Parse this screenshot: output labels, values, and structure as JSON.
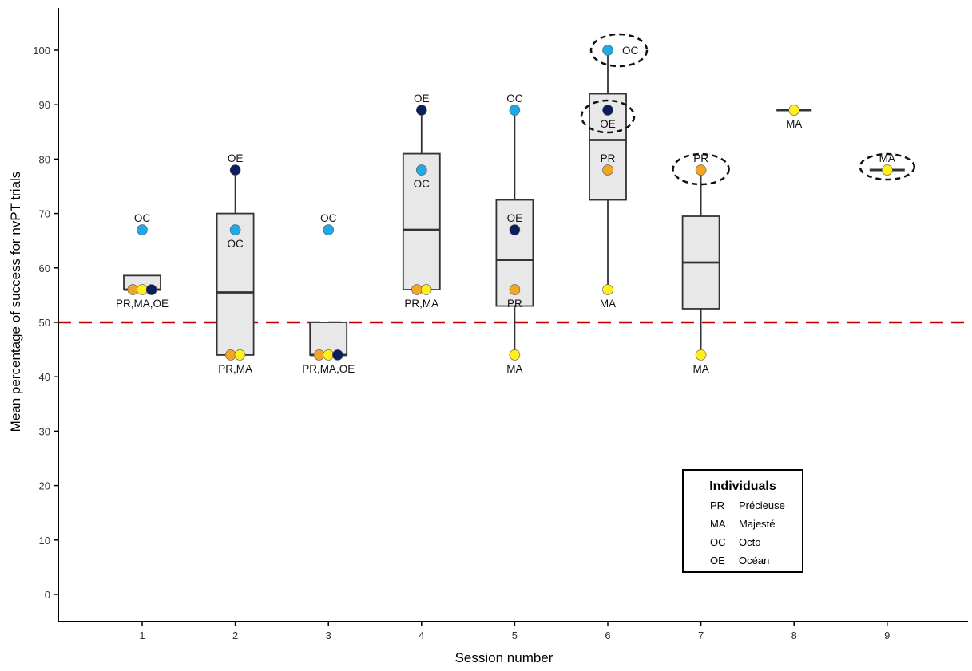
{
  "chart_data": {
    "type": "box-dot",
    "xlabel": "Session number",
    "ylabel": "Mean percentage of success for nvPT trials",
    "categories": [
      "1",
      "2",
      "3",
      "4",
      "5",
      "6",
      "7",
      "8",
      "9"
    ],
    "ylim": [
      -5,
      107
    ],
    "yticks": [
      0,
      10,
      20,
      30,
      40,
      50,
      60,
      70,
      80,
      90,
      100
    ],
    "reference_line": {
      "y": 50,
      "color": "#c00000"
    },
    "colors": {
      "PR": "#f2a623",
      "MA": "#ffef1a",
      "OC": "#20a9e6",
      "OE": "#0b1f5e",
      "box_fill": "#e8e8e8",
      "box_stroke": "#333333"
    },
    "boxes": [
      {
        "session": 1,
        "low": 56,
        "q1": 56,
        "median": 56,
        "q3": 58.6,
        "high": 58.6
      },
      {
        "session": 2,
        "low": 44,
        "q1": 44,
        "median": 55.5,
        "q3": 70,
        "high": 78
      },
      {
        "session": 3,
        "low": 44,
        "q1": 44,
        "median": 44,
        "q3": 50,
        "high": 50
      },
      {
        "session": 4,
        "low": 56,
        "q1": 56,
        "median": 67,
        "q3": 81,
        "high": 89
      },
      {
        "session": 5,
        "low": 44,
        "q1": 53,
        "median": 61.5,
        "q3": 72.5,
        "high": 89
      },
      {
        "session": 6,
        "low": 56,
        "q1": 72.5,
        "median": 83.5,
        "q3": 92,
        "high": 100
      },
      {
        "session": 7,
        "low": 44,
        "q1": 52.5,
        "median": 61,
        "q3": 69.5,
        "high": 78
      },
      {
        "session": 8,
        "median": 89
      },
      {
        "session": 9,
        "median": 78
      }
    ],
    "points": [
      {
        "session": 1,
        "individual": "OC",
        "value": 67
      },
      {
        "session": 1,
        "individual": "PR",
        "value": 56,
        "offset": -0.1
      },
      {
        "session": 1,
        "individual": "MA",
        "value": 56
      },
      {
        "session": 1,
        "individual": "OE",
        "value": 56,
        "offset": 0.1
      },
      {
        "session": 2,
        "individual": "OE",
        "value": 78
      },
      {
        "session": 2,
        "individual": "OC",
        "value": 67
      },
      {
        "session": 2,
        "individual": "PR",
        "value": 44,
        "offset": -0.05
      },
      {
        "session": 2,
        "individual": "MA",
        "value": 44,
        "offset": 0.05
      },
      {
        "session": 3,
        "individual": "OC",
        "value": 67
      },
      {
        "session": 3,
        "individual": "PR",
        "value": 44,
        "offset": -0.1
      },
      {
        "session": 3,
        "individual": "MA",
        "value": 44
      },
      {
        "session": 3,
        "individual": "OE",
        "value": 44,
        "offset": 0.1
      },
      {
        "session": 4,
        "individual": "OE",
        "value": 89
      },
      {
        "session": 4,
        "individual": "OC",
        "value": 78
      },
      {
        "session": 4,
        "individual": "PR",
        "value": 56,
        "offset": -0.05
      },
      {
        "session": 4,
        "individual": "MA",
        "value": 56,
        "offset": 0.05
      },
      {
        "session": 5,
        "individual": "OC",
        "value": 89
      },
      {
        "session": 5,
        "individual": "OE",
        "value": 67
      },
      {
        "session": 5,
        "individual": "PR",
        "value": 56
      },
      {
        "session": 5,
        "individual": "MA",
        "value": 44
      },
      {
        "session": 6,
        "individual": "OC",
        "value": 100,
        "highlight": true
      },
      {
        "session": 6,
        "individual": "OE",
        "value": 89,
        "highlight": true
      },
      {
        "session": 6,
        "individual": "PR",
        "value": 78
      },
      {
        "session": 6,
        "individual": "MA",
        "value": 56
      },
      {
        "session": 7,
        "individual": "PR",
        "value": 78,
        "highlight": true
      },
      {
        "session": 7,
        "individual": "MA",
        "value": 44
      },
      {
        "session": 8,
        "individual": "MA",
        "value": 89
      },
      {
        "session": 9,
        "individual": "MA",
        "value": 78,
        "highlight": true
      }
    ],
    "annotations": [
      {
        "session": 1,
        "text": "OC",
        "value": 67,
        "pos": "above"
      },
      {
        "session": 1,
        "text": "PR,MA,OE",
        "value": 56,
        "pos": "below"
      },
      {
        "session": 2,
        "text": "OE",
        "value": 78,
        "pos": "above"
      },
      {
        "session": 2,
        "text": "OC",
        "value": 67,
        "pos": "below"
      },
      {
        "session": 2,
        "text": "PR,MA",
        "value": 44,
        "pos": "below"
      },
      {
        "session": 3,
        "text": "OC",
        "value": 67,
        "pos": "above"
      },
      {
        "session": 3,
        "text": "PR,MA,OE",
        "value": 44,
        "pos": "below"
      },
      {
        "session": 4,
        "text": "OE",
        "value": 89,
        "pos": "above"
      },
      {
        "session": 4,
        "text": "OC",
        "value": 78,
        "pos": "below"
      },
      {
        "session": 4,
        "text": "PR,MA",
        "value": 56,
        "pos": "below"
      },
      {
        "session": 5,
        "text": "OC",
        "value": 89,
        "pos": "above"
      },
      {
        "session": 5,
        "text": "OE",
        "value": 67,
        "pos": "above"
      },
      {
        "session": 5,
        "text": "PR",
        "value": 56,
        "pos": "below"
      },
      {
        "session": 5,
        "text": "MA",
        "value": 44,
        "pos": "below"
      },
      {
        "session": 6,
        "text": "OC",
        "value": 100,
        "pos": "right"
      },
      {
        "session": 6,
        "text": "OE",
        "value": 89,
        "pos": "below"
      },
      {
        "session": 6,
        "text": "PR",
        "value": 78,
        "pos": "above"
      },
      {
        "session": 6,
        "text": "MA",
        "value": 56,
        "pos": "below"
      },
      {
        "session": 7,
        "text": "PR",
        "value": 78,
        "pos": "above"
      },
      {
        "session": 7,
        "text": "MA",
        "value": 44,
        "pos": "below"
      },
      {
        "session": 8,
        "text": "MA",
        "value": 89,
        "pos": "below"
      },
      {
        "session": 9,
        "text": "MA",
        "value": 78,
        "pos": "above"
      }
    ],
    "highlights": [
      {
        "session": 6,
        "value": 100,
        "label": "OC"
      },
      {
        "session": 6,
        "value": 89,
        "label": "OE"
      },
      {
        "session": 7,
        "value": 78,
        "label": "PR"
      },
      {
        "session": 9,
        "value": 78,
        "label": "MA"
      }
    ],
    "legend": {
      "title": "Individuals",
      "placement": "bottom-right",
      "entries": [
        {
          "code": "PR",
          "name": "Précieuse"
        },
        {
          "code": "MA",
          "name": "Majesté"
        },
        {
          "code": "OC",
          "name": "Octo"
        },
        {
          "code": "OE",
          "name": "Océan"
        }
      ]
    }
  }
}
